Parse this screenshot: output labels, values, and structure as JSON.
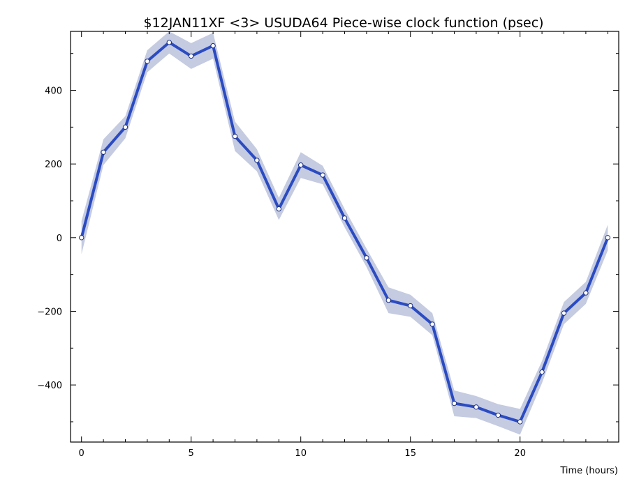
{
  "colors": {
    "line": "#2b4bc2",
    "band": "#c5cbe0",
    "marker_fill": "#ffffff",
    "axis": "#000000"
  },
  "chart_data": {
    "type": "line",
    "title": "$12JAN11XF <3>  USUDA64   Piece-wise clock function (psec)",
    "xlabel": "Time (hours)",
    "ylabel": "",
    "xlim": [
      -0.5,
      24.5
    ],
    "ylim": [
      -555,
      560
    ],
    "xticks": [
      0,
      5,
      10,
      15,
      20
    ],
    "yticks": [
      -400,
      -200,
      0,
      200,
      400
    ],
    "xminor_step": 1,
    "yminor_step": 100,
    "grid": false,
    "series": [
      {
        "x": [
          0,
          1,
          2,
          3,
          4,
          5,
          6,
          7,
          8,
          9,
          10,
          11,
          12,
          13,
          14,
          15,
          16,
          17,
          18,
          19,
          20,
          21,
          22,
          23,
          24
        ],
        "values": [
          0,
          232,
          300,
          479,
          530,
          493,
          521,
          275,
          210,
          78,
          197,
          170,
          53,
          -55,
          -170,
          -185,
          -235,
          -450,
          -460,
          -482,
          -500,
          -365,
          -205,
          -150,
          0
        ],
        "band_half_width": [
          45,
          35,
          30,
          30,
          30,
          35,
          35,
          40,
          30,
          30,
          35,
          25,
          25,
          25,
          35,
          30,
          30,
          35,
          30,
          30,
          35,
          30,
          30,
          30,
          35
        ]
      }
    ]
  }
}
